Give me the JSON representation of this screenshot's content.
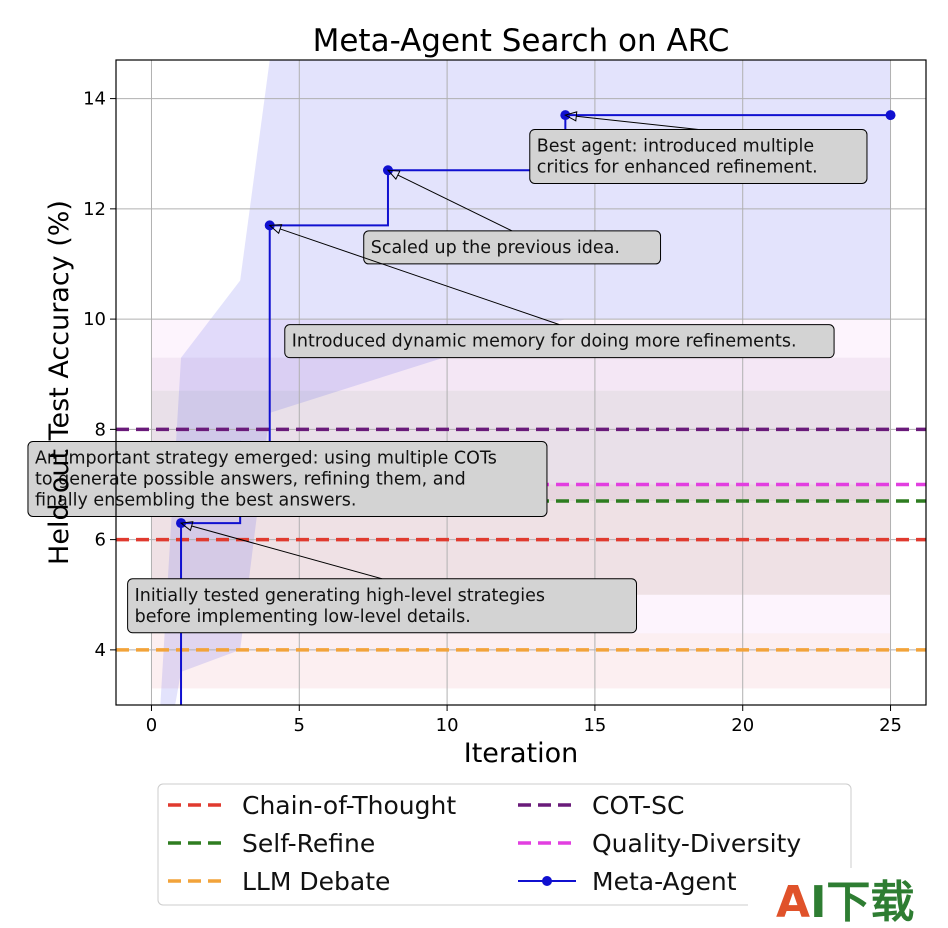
{
  "chart_data": {
    "type": "line",
    "title": "Meta-Agent Search on ARC",
    "xlabel": "Iteration",
    "ylabel": "Held-out Test Accuracy (%)",
    "xlim": [
      -1.2,
      26.2
    ],
    "ylim": [
      3.0,
      14.7
    ],
    "xticks": [
      0,
      5,
      10,
      15,
      20,
      25
    ],
    "yticks": [
      4,
      6,
      8,
      10,
      12,
      14
    ],
    "grid": true,
    "legend_position": "below",
    "baselines": [
      {
        "name": "Chain-of-Thought",
        "value": 6.0,
        "color": "#e03a2f",
        "band": [
          5.0,
          7.0
        ]
      },
      {
        "name": "COT-SC",
        "value": 8.0,
        "color": "#6a1b7a",
        "band": [
          6.7,
          9.3
        ]
      },
      {
        "name": "Self-Refine",
        "value": 6.7,
        "color": "#2e7d20",
        "band": [
          5.0,
          8.7
        ]
      },
      {
        "name": "Quality-Diversity",
        "value": 7.0,
        "color": "#e23fe0",
        "band": [
          3.3,
          10.0
        ]
      },
      {
        "name": "LLM Debate",
        "value": 4.0,
        "color": "#f2a33a",
        "band": [
          3.3,
          4.3
        ]
      }
    ],
    "meta_agent": {
      "name": "Meta-Agent",
      "color": "#1010d0",
      "band_color": "#5a5af0",
      "points": [
        {
          "x": 1,
          "y": 6.3
        },
        {
          "x": 3,
          "y": 7.7
        },
        {
          "x": 4,
          "y": 11.7
        },
        {
          "x": 8,
          "y": 12.7
        },
        {
          "x": 14,
          "y": 13.7
        },
        {
          "x": 25,
          "y": 13.7
        }
      ],
      "step_path": [
        [
          1,
          3.0
        ],
        [
          1,
          6.3
        ],
        [
          3,
          6.3
        ],
        [
          3,
          7.7
        ],
        [
          4,
          7.7
        ],
        [
          4,
          11.7
        ],
        [
          8,
          11.7
        ],
        [
          8,
          12.7
        ],
        [
          14,
          12.7
        ],
        [
          14,
          13.7
        ],
        [
          25,
          13.7
        ]
      ],
      "band_upper": [
        [
          0.3,
          3.0
        ],
        [
          1,
          9.3
        ],
        [
          3,
          10.7
        ],
        [
          4,
          14.7
        ],
        [
          25,
          14.7
        ]
      ],
      "band_lower": [
        [
          25,
          10.0
        ],
        [
          14,
          10.0
        ],
        [
          4,
          8.3
        ],
        [
          3,
          4.0
        ],
        [
          1,
          3.6
        ],
        [
          0.8,
          3.0
        ]
      ]
    },
    "annotations": [
      {
        "lines": [
          "Best agent: introduced multiple",
          "critics for enhanced refinement."
        ],
        "target": [
          14,
          13.7
        ],
        "text_anchor": [
          18.5,
          12.95
        ]
      },
      {
        "lines": [
          "Scaled up the previous idea."
        ],
        "target": [
          8,
          12.7
        ],
        "text_anchor": [
          12.2,
          11.3
        ]
      },
      {
        "lines": [
          "Introduced dynamic memory for doing more refinements."
        ],
        "target": [
          4,
          11.7
        ],
        "text_anchor": [
          13.8,
          9.6
        ]
      },
      {
        "lines": [
          "An important strategy emerged: using multiple COTs",
          "to generate possible answers, refining them, and",
          "finally ensembling the best answers."
        ],
        "target": [
          3,
          7.7
        ],
        "text_anchor": [
          4.6,
          7.1
        ]
      },
      {
        "lines": [
          "Initially tested generating high-level strategies",
          "before implementing low-level details."
        ],
        "target": [
          1,
          6.3
        ],
        "text_anchor": [
          7.8,
          4.8
        ]
      }
    ],
    "legend": [
      {
        "label": "Chain-of-Thought",
        "style": "dashed",
        "color": "#e03a2f"
      },
      {
        "label": "COT-SC",
        "style": "dashed",
        "color": "#6a1b7a"
      },
      {
        "label": "Self-Refine",
        "style": "dashed",
        "color": "#2e7d20"
      },
      {
        "label": "Quality-Diversity",
        "style": "dashed",
        "color": "#e23fe0"
      },
      {
        "label": "LLM Debate",
        "style": "dashed",
        "color": "#f2a33a"
      },
      {
        "label": "Meta-Agent",
        "style": "line-marker",
        "color": "#1010d0"
      }
    ]
  },
  "watermark": {
    "text_a": "A",
    "text_rest": "I下载",
    "color_a": "#e0522a",
    "color_rest": "#2e7d32"
  }
}
